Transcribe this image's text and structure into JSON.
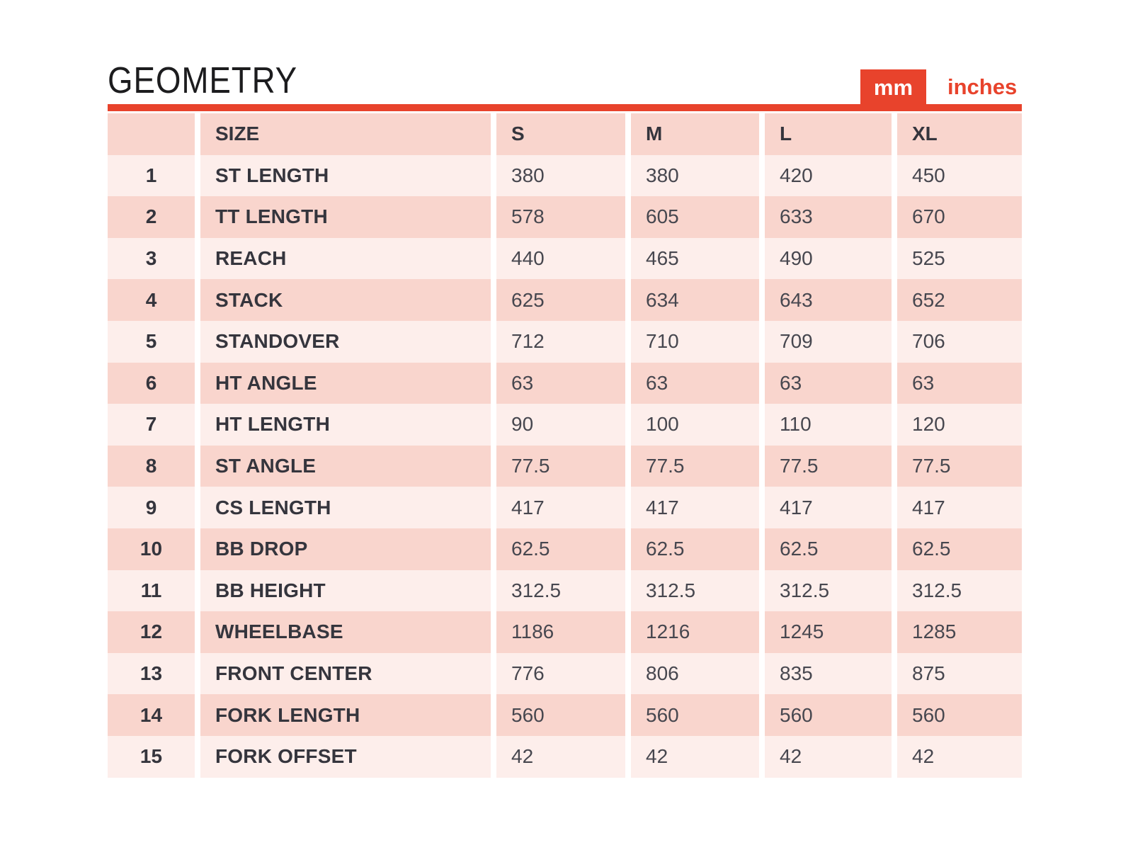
{
  "page_title": "GEOMETRY",
  "unit_tabs": {
    "items": [
      {
        "label": "mm",
        "active": true
      },
      {
        "label": "inches",
        "active": false
      }
    ]
  },
  "colors": {
    "accent_red": "#e8432c",
    "row_dark": "#f9d5cd",
    "row_light": "#fdeeeb",
    "label_text": "#35353d",
    "value_text": "#47474f",
    "tab_text_active": "#ffffff",
    "title_text": "#1c1c1e",
    "background": "#ffffff"
  },
  "chart_data": {
    "type": "table",
    "title": "GEOMETRY",
    "unit_selected": "mm",
    "columns": [
      "SIZE",
      "S",
      "M",
      "L",
      "XL"
    ],
    "rows": [
      {
        "index": 1,
        "label": "ST LENGTH",
        "values": [
          380,
          380,
          420,
          450
        ]
      },
      {
        "index": 2,
        "label": "TT LENGTH",
        "values": [
          578,
          605,
          633,
          670
        ]
      },
      {
        "index": 3,
        "label": "REACH",
        "values": [
          440,
          465,
          490,
          525
        ]
      },
      {
        "index": 4,
        "label": "STACK",
        "values": [
          625,
          634,
          643,
          652
        ]
      },
      {
        "index": 5,
        "label": "STANDOVER",
        "values": [
          712,
          710,
          709,
          706
        ]
      },
      {
        "index": 6,
        "label": "HT ANGLE",
        "values": [
          63,
          63,
          63,
          63
        ]
      },
      {
        "index": 7,
        "label": "HT LENGTH",
        "values": [
          90,
          100,
          110,
          120
        ]
      },
      {
        "index": 8,
        "label": "ST ANGLE",
        "values": [
          77.5,
          77.5,
          77.5,
          77.5
        ]
      },
      {
        "index": 9,
        "label": "CS LENGTH",
        "values": [
          417,
          417,
          417,
          417
        ]
      },
      {
        "index": 10,
        "label": "BB DROP",
        "values": [
          62.5,
          62.5,
          62.5,
          62.5
        ]
      },
      {
        "index": 11,
        "label": "BB HEIGHT",
        "values": [
          312.5,
          312.5,
          312.5,
          312.5
        ]
      },
      {
        "index": 12,
        "label": "WHEELBASE",
        "values": [
          1186,
          1216,
          1245,
          1285
        ]
      },
      {
        "index": 13,
        "label": "FRONT CENTER",
        "values": [
          776,
          806,
          835,
          875
        ]
      },
      {
        "index": 14,
        "label": "FORK LENGTH",
        "values": [
          560,
          560,
          560,
          560
        ]
      },
      {
        "index": 15,
        "label": "FORK OFFSET",
        "values": [
          42,
          42,
          42,
          42
        ]
      }
    ]
  }
}
